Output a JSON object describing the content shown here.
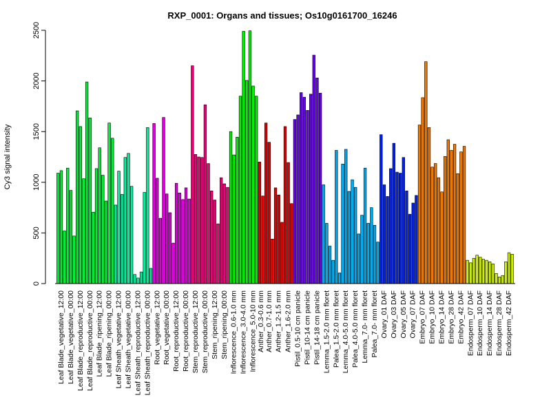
{
  "chart_data": {
    "type": "bar",
    "title": "RXP_0001: Organs and tissues; Os10g0161700_16246",
    "xlabel": "",
    "ylabel": "Cy3 signal intensity",
    "ylim": [
      0,
      2500
    ],
    "yticks": [
      0,
      500,
      1000,
      1500,
      2000,
      2500
    ],
    "grid": false,
    "groups": [
      {
        "label": "Leaf Blade_vegetative_12:00",
        "color": "#00ee33",
        "values": [
          1090,
          1115,
          520
        ]
      },
      {
        "label": "Leaf Blade_vegetative_00:00",
        "color": "#00ee33",
        "values": [
          1140,
          920,
          470
        ]
      },
      {
        "label": "Leaf Blade_reproductive_12:00",
        "color": "#00ee33",
        "values": [
          1705,
          1550,
          1035
        ]
      },
      {
        "label": "Leaf Blade_reproductive_00:00",
        "color": "#00ee33",
        "values": [
          1990,
          1635,
          705
        ]
      },
      {
        "label": "Leaf Blade_ripening_12:00",
        "color": "#00ee33",
        "values": [
          1135,
          1340,
          1070
        ]
      },
      {
        "label": "Leaf Blade_ripening_00:00",
        "color": "#00ee33",
        "values": [
          815,
          1585,
          1435
        ]
      },
      {
        "label": "Leaf Sheath_vegetative_12:00",
        "color": "#00ee99",
        "values": [
          775,
          1110,
          880
        ]
      },
      {
        "label": "Leaf Sheath_vegetative_00:00",
        "color": "#00ee99",
        "values": [
          1245,
          1285,
          960
        ]
      },
      {
        "label": "Leaf Sheath_reproductive_12:00",
        "color": "#00ee99",
        "values": [
          90,
          55,
          115
        ]
      },
      {
        "label": "Leaf Sheath_reproductive_00:00",
        "color": "#00ee99",
        "values": [
          900,
          1540,
          150
        ]
      },
      {
        "label": "Root_vegetative_12:00",
        "color": "#dd00dd",
        "values": [
          1580,
          1040,
          645
        ]
      },
      {
        "label": "Root_vegetative_00:00",
        "color": "#dd00dd",
        "values": [
          1640,
          885,
          700
        ]
      },
      {
        "label": "Root_reproductive_12:00",
        "color": "#dd00dd",
        "values": [
          400,
          990,
          895
        ]
      },
      {
        "label": "Root_reproductive_00:00",
        "color": "#dd00dd",
        "values": [
          830,
          945,
          835
        ]
      },
      {
        "label": "Stem_reproductive_12:00",
        "color": "#ee0077",
        "values": [
          2150,
          1275,
          1250
        ]
      },
      {
        "label": "Stem_reproductive_00:00",
        "color": "#ee0077",
        "values": [
          1245,
          1765,
          1185
        ]
      },
      {
        "label": "Stem_ripening_12:00",
        "color": "#ee0077",
        "values": [
          915,
          825,
          590
        ]
      },
      {
        "label": "Stem_ripening_00:00",
        "color": "#ee0077",
        "values": [
          1045,
          985,
          950
        ]
      },
      {
        "label": "Inflorescence_0.6-1.0 mm",
        "color": "#00ee00",
        "values": [
          1500,
          1270,
          1445
        ]
      },
      {
        "label": "Inflorescence_3.0-4.0 mm",
        "color": "#00ee00",
        "values": [
          1850,
          2490,
          2005
        ]
      },
      {
        "label": "Inflorescence_5.0-10 mm",
        "color": "#00ee00",
        "values": [
          2495,
          1950,
          1850
        ]
      },
      {
        "label": "Anther_0.3-0.6 mm",
        "color": "#dd0000",
        "values": [
          1200,
          865
        ]
      },
      {
        "label": "Anther_0.7-1.0 mm",
        "color": "#dd0000",
        "values": [
          1585,
          1395,
          440
        ]
      },
      {
        "label": "Anther_1.2-1.5 mm",
        "color": "#dd0000",
        "values": [
          945,
          875,
          605
        ]
      },
      {
        "label": "Anther_1.6-2.0 mm",
        "color": "#dd0000",
        "values": [
          1550,
          1195,
          790
        ]
      },
      {
        "label": "Pistil_0.5-10 cm panicle",
        "color": "#6600ee",
        "values": [
          1620,
          1665,
          1885
        ]
      },
      {
        "label": "Pistil_10-14 cm panicle",
        "color": "#6600ee",
        "values": [
          1840,
          1710,
          1870
        ]
      },
      {
        "label": "Pistil_14-18 cm panicle",
        "color": "#6600ee",
        "values": [
          2255,
          2030,
          1880
        ]
      },
      {
        "label": "Lemma_1.5-2.0 mm floret",
        "color": "#00aaee",
        "values": [
          975,
          595,
          370
        ]
      },
      {
        "label": "Palea_1.5-2.0 mm floret",
        "color": "#00aaee",
        "values": [
          230,
          1315,
          105
        ]
      },
      {
        "label": "Lemma_4.0-5.0 mm floret",
        "color": "#00aaee",
        "values": [
          1180,
          1325,
          910
        ]
      },
      {
        "label": "Palea_4.0-5.0 mm floret",
        "color": "#00aaee",
        "values": [
          1025,
          950,
          490
        ]
      },
      {
        "label": "Lemma_7.0- mm floret",
        "color": "#00aaee",
        "values": [
          675,
          1140,
          595
        ]
      },
      {
        "label": "Palea_7.0- mm floret",
        "color": "#00aaee",
        "values": [
          750,
          575,
          410
        ]
      },
      {
        "label": "Ovary_01 DAF",
        "color": "#0022ee",
        "values": [
          1470,
          975,
          860
        ]
      },
      {
        "label": "Ovary_03 DAF",
        "color": "#0022ee",
        "values": [
          1135,
          1385,
          1100
        ]
      },
      {
        "label": "Ovary_05 DAF",
        "color": "#0022ee",
        "values": [
          1090,
          1245,
          915
        ]
      },
      {
        "label": "Ovary_07 DAF",
        "color": "#0022ee",
        "values": [
          685,
          795,
          870
        ]
      },
      {
        "label": "Embryo_07 DAF",
        "color": "#ee7700",
        "values": [
          1565,
          1835,
          2190
        ]
      },
      {
        "label": "Embryo_10 DAF",
        "color": "#ee7700",
        "values": [
          1540,
          1150,
          1185
        ]
      },
      {
        "label": "Embryo_14 DAF",
        "color": "#ee7700",
        "values": [
          1045,
          905,
          1255
        ]
      },
      {
        "label": "Embryo_28 DAF",
        "color": "#ee7700",
        "values": [
          1420,
          1315,
          1375
        ]
      },
      {
        "label": "Embryo_42 DAF",
        "color": "#ee7700",
        "values": [
          1085,
          1300,
          1355
        ]
      },
      {
        "label": "Endosperm_07 DAF",
        "color": "#ccee00",
        "values": [
          230,
          205,
          250
        ]
      },
      {
        "label": "Endosperm_10 DAF",
        "color": "#ccee00",
        "values": [
          280,
          260,
          240
        ]
      },
      {
        "label": "Endosperm_14 DAF",
        "color": "#ccee00",
        "values": [
          230,
          215,
          195
        ]
      },
      {
        "label": "Endosperm_28 DAF",
        "color": "#ccee00",
        "values": [
          100,
          65,
          80
        ]
      },
      {
        "label": "Endosperm_42 DAF",
        "color": "#ccee00",
        "values": [
          215,
          305,
          290
        ]
      }
    ]
  }
}
